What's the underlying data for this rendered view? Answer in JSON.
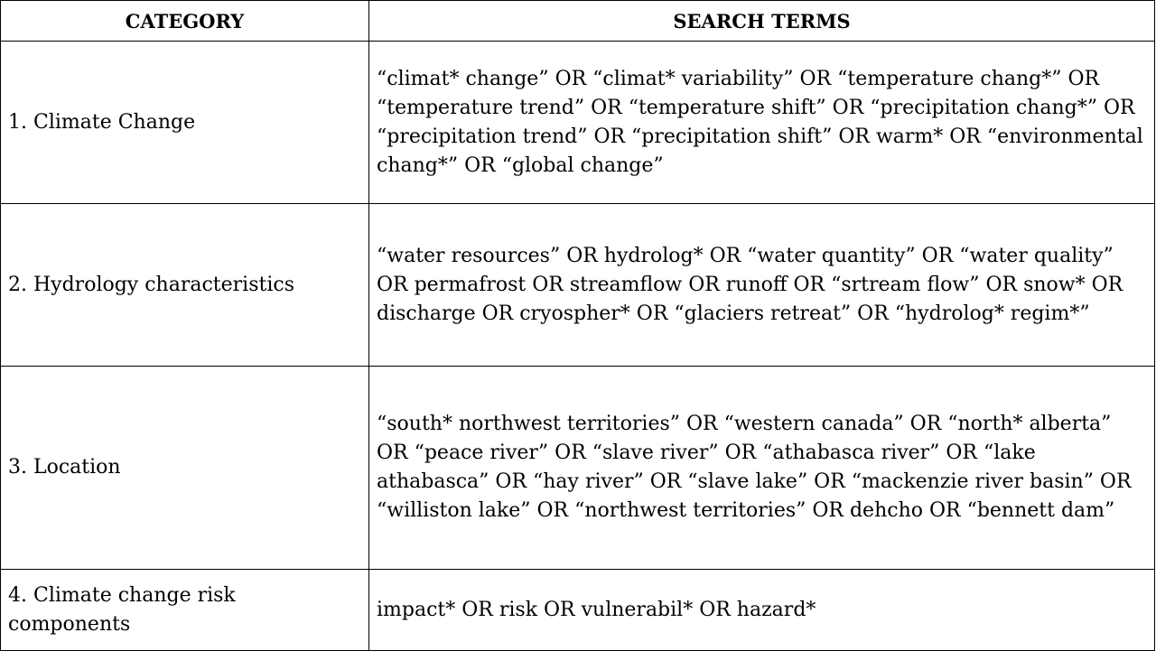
{
  "table": {
    "headers": {
      "category": "CATEGORY",
      "search_terms": "SEARCH TERMS"
    },
    "rows": [
      {
        "category": "1.  Climate Change",
        "terms": "“climat* change” OR “climat* variability” OR “temperature chang*” OR “temperature trend” OR “temperature shift” OR “precipitation chang*” OR “precipitation trend” OR “precipitation shift” OR warm* OR “environmental chang*” OR “global change”"
      },
      {
        "category": "2.  Hydrology characteristics",
        "terms": "“water resources” OR hydrolog* OR “water quantity” OR “water quality” OR permafrost OR streamflow OR runoff OR “srtream flow” OR snow* OR discharge OR cryospher* OR “glaciers retreat” OR “hydrolog* regim*”"
      },
      {
        "category": "3.  Location",
        "terms": "“south* northwest territories” OR “western canada” OR “north* alberta” OR “peace river” OR “slave river” OR “athabasca river” OR “lake athabasca” OR “hay river” OR “slave lake” OR “mackenzie river basin” OR “williston lake” OR “northwest territories” OR  dehcho OR “bennett dam”"
      },
      {
        "category": "4.  Climate change risk components",
        "terms": "impact* OR risk OR vulnerabil* OR hazard*"
      }
    ]
  }
}
